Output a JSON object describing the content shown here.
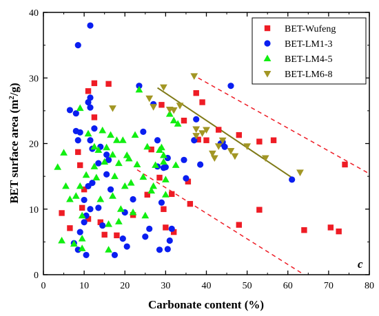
{
  "chart_data": {
    "type": "scatter",
    "panel_label": "c",
    "xlabel": "Carbonate content (%)",
    "ylabel_main": "BET surface area (m",
    "ylabel_sup": "2",
    "ylabel_end": "/g)",
    "xlim": [
      0,
      80
    ],
    "ylim": [
      0,
      40
    ],
    "xticks": [
      0,
      10,
      20,
      30,
      40,
      50,
      60,
      70,
      80
    ],
    "yticks": [
      0,
      10,
      20,
      30,
      40
    ],
    "legend_position": "top-right",
    "series": [
      {
        "name": "BET-Wufeng",
        "marker": "square",
        "color": "#ee1c25",
        "points": [
          [
            4.5,
            9.4
          ],
          [
            6.5,
            7.1
          ],
          [
            8.5,
            18.7
          ],
          [
            9.0,
            16.7
          ],
          [
            9.5,
            10.2
          ],
          [
            10.0,
            13.0
          ],
          [
            11.0,
            8.5
          ],
          [
            11.0,
            28.0
          ],
          [
            12.5,
            29.2
          ],
          [
            12.5,
            24.0
          ],
          [
            14.0,
            8.0
          ],
          [
            15.0,
            6.1
          ],
          [
            16.0,
            29.1
          ],
          [
            18.0,
            6.0
          ],
          [
            22.0,
            9.1
          ],
          [
            25.5,
            12.2
          ],
          [
            26.5,
            19.1
          ],
          [
            28.5,
            14.8
          ],
          [
            29.0,
            25.9
          ],
          [
            29.5,
            10.0
          ],
          [
            30.0,
            7.2
          ],
          [
            31.5,
            12.3
          ],
          [
            32.0,
            6.5
          ],
          [
            34.5,
            23.5
          ],
          [
            35.5,
            14.2
          ],
          [
            36.0,
            10.8
          ],
          [
            37.5,
            27.7
          ],
          [
            38.0,
            20.6
          ],
          [
            39.0,
            26.3
          ],
          [
            40.0,
            20.5
          ],
          [
            43.0,
            22.1
          ],
          [
            48.0,
            7.6
          ],
          [
            48.0,
            21.3
          ],
          [
            53.0,
            9.9
          ],
          [
            53.0,
            20.3
          ],
          [
            56.5,
            20.5
          ],
          [
            64.0,
            6.8
          ],
          [
            70.5,
            7.2
          ],
          [
            72.5,
            6.6
          ],
          [
            74.0,
            16.8
          ]
        ]
      },
      {
        "name": "BET-LM1-3",
        "marker": "circle",
        "color": "#0a1ef0",
        "points": [
          [
            8.5,
            35.0
          ],
          [
            11.5,
            38.0
          ],
          [
            6.5,
            25.1
          ],
          [
            8.0,
            24.6
          ],
          [
            8.0,
            21.9
          ],
          [
            9.0,
            21.7
          ],
          [
            8.5,
            20.5
          ],
          [
            11.0,
            26.3
          ],
          [
            11.5,
            27.0
          ],
          [
            11.5,
            25.5
          ],
          [
            12.5,
            22.3
          ],
          [
            11.5,
            20.5
          ],
          [
            12.0,
            19.2
          ],
          [
            14.0,
            19.5
          ],
          [
            13.5,
            17.0
          ],
          [
            15.5,
            18.3
          ],
          [
            16.0,
            17.5
          ],
          [
            15.5,
            15.3
          ],
          [
            16.5,
            13.0
          ],
          [
            12.0,
            14.0
          ],
          [
            11.0,
            13.5
          ],
          [
            10.0,
            11.4
          ],
          [
            11.5,
            10.0
          ],
          [
            13.5,
            10.2
          ],
          [
            10.5,
            9.0
          ],
          [
            10.0,
            8.0
          ],
          [
            9.0,
            6.5
          ],
          [
            7.5,
            4.8
          ],
          [
            8.5,
            3.8
          ],
          [
            10.5,
            3.0
          ],
          [
            14.5,
            7.5
          ],
          [
            17.5,
            3.0
          ],
          [
            19.5,
            5.5
          ],
          [
            20.0,
            9.5
          ],
          [
            20.5,
            4.3
          ],
          [
            22.0,
            11.5
          ],
          [
            23.5,
            28.8
          ],
          [
            24.5,
            21.8
          ],
          [
            25.0,
            5.8
          ],
          [
            26.0,
            7.0
          ],
          [
            27.0,
            26.0
          ],
          [
            28.0,
            20.5
          ],
          [
            28.0,
            16.5
          ],
          [
            28.5,
            3.8
          ],
          [
            29.5,
            16.3
          ],
          [
            29.0,
            11.0
          ],
          [
            30.0,
            16.4
          ],
          [
            30.5,
            3.9
          ],
          [
            30.5,
            17.8
          ],
          [
            31.0,
            5.2
          ],
          [
            31.5,
            7.0
          ],
          [
            34.5,
            17.5
          ],
          [
            35.0,
            14.7
          ],
          [
            37.0,
            20.5
          ],
          [
            37.5,
            23.7
          ],
          [
            38.5,
            16.8
          ],
          [
            43.5,
            20.0
          ],
          [
            44.0,
            20.2
          ],
          [
            44.5,
            19.5
          ],
          [
            46.0,
            28.8
          ],
          [
            61.0,
            14.5
          ]
        ]
      },
      {
        "name": "BET-LM4-5",
        "marker": "triangle-up",
        "color": "#11ee11",
        "points": [
          [
            3.5,
            16.4
          ],
          [
            4.5,
            5.2
          ],
          [
            5.0,
            18.6
          ],
          [
            5.5,
            13.5
          ],
          [
            6.5,
            11.5
          ],
          [
            7.5,
            4.7
          ],
          [
            8.0,
            12.0
          ],
          [
            9.0,
            25.4
          ],
          [
            9.0,
            13.5
          ],
          [
            9.5,
            9.0
          ],
          [
            9.5,
            5.5
          ],
          [
            9.5,
            4.0
          ],
          [
            10.5,
            15.2
          ],
          [
            11.0,
            21.5
          ],
          [
            12.5,
            19.5
          ],
          [
            12.5,
            16.5
          ],
          [
            13.0,
            14.8
          ],
          [
            13.5,
            19.0
          ],
          [
            14.0,
            11.5
          ],
          [
            14.5,
            22.0
          ],
          [
            15.0,
            17.2
          ],
          [
            15.5,
            19.4
          ],
          [
            16.0,
            7.7
          ],
          [
            16.0,
            3.8
          ],
          [
            16.5,
            21.3
          ],
          [
            17.0,
            18.3
          ],
          [
            17.0,
            12.0
          ],
          [
            17.5,
            15.0
          ],
          [
            18.0,
            20.5
          ],
          [
            18.5,
            8.1
          ],
          [
            18.5,
            17.0
          ],
          [
            19.0,
            10.0
          ],
          [
            19.5,
            20.5
          ],
          [
            20.0,
            13.5
          ],
          [
            20.5,
            18.2
          ],
          [
            21.0,
            17.7
          ],
          [
            21.5,
            14.0
          ],
          [
            22.0,
            9.5
          ],
          [
            22.5,
            21.3
          ],
          [
            23.0,
            16.8
          ],
          [
            23.5,
            28.2
          ],
          [
            24.5,
            14.9
          ],
          [
            25.0,
            9.0
          ],
          [
            25.5,
            19.5
          ],
          [
            26.5,
            12.8
          ],
          [
            27.0,
            13.5
          ],
          [
            27.5,
            16.7
          ],
          [
            28.5,
            19.0
          ],
          [
            29.0,
            19.4
          ],
          [
            29.5,
            18.2
          ],
          [
            29.5,
            17.2
          ],
          [
            30.0,
            14.5
          ],
          [
            30.0,
            12.2
          ],
          [
            31.0,
            24.5
          ],
          [
            32.0,
            23.5
          ],
          [
            32.5,
            16.7
          ],
          [
            33.0,
            23.0
          ]
        ]
      },
      {
        "name": "BET-LM6-8",
        "marker": "triangle-down",
        "color": "#a29624",
        "points": [
          [
            17.0,
            25.4
          ],
          [
            26.0,
            26.9
          ],
          [
            27.0,
            25.6
          ],
          [
            29.5,
            28.6
          ],
          [
            31.0,
            25.2
          ],
          [
            32.0,
            25.1
          ],
          [
            33.5,
            25.8
          ],
          [
            37.0,
            30.3
          ],
          [
            37.5,
            22.2
          ],
          [
            37.5,
            21.2
          ],
          [
            39.0,
            21.6
          ],
          [
            40.0,
            22.1
          ],
          [
            41.5,
            18.5
          ],
          [
            42.0,
            17.8
          ],
          [
            43.0,
            19.6
          ],
          [
            44.0,
            20.5
          ],
          [
            46.0,
            18.9
          ],
          [
            47.0,
            18.1
          ],
          [
            50.0,
            19.6
          ],
          [
            54.5,
            17.8
          ],
          [
            63.0,
            15.6
          ]
        ]
      }
    ],
    "trend_line": {
      "series": "BET-LM6-8",
      "color": "#7f7a17",
      "from": [
        28,
        28.5
      ],
      "to": [
        61.5,
        14.6
      ]
    },
    "envelope_lines": {
      "color": "#ee1c25",
      "upper": {
        "from": [
          38,
          30
        ],
        "to": [
          80,
          15.4
        ]
      },
      "lower": {
        "from": [
          23,
          16
        ],
        "to": [
          64,
          0
        ]
      }
    }
  }
}
